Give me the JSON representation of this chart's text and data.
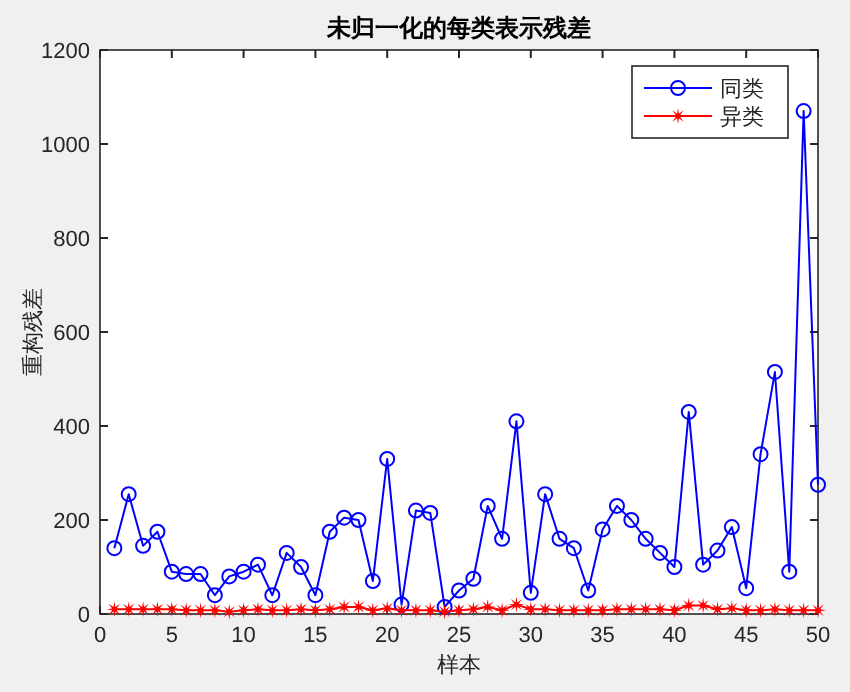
{
  "chart_data": {
    "type": "line",
    "title": "未归一化的每类表示残差",
    "xlabel": "样本",
    "ylabel": "重构残差",
    "x": [
      1,
      2,
      3,
      4,
      5,
      6,
      7,
      8,
      9,
      10,
      11,
      12,
      13,
      14,
      15,
      16,
      17,
      18,
      19,
      20,
      21,
      22,
      23,
      24,
      25,
      26,
      27,
      28,
      29,
      30,
      31,
      32,
      33,
      34,
      35,
      36,
      37,
      38,
      39,
      40,
      41,
      42,
      43,
      44,
      45,
      46,
      47,
      48,
      49,
      50
    ],
    "series": [
      {
        "name": "同类",
        "color": "#0000ff",
        "marker": "circle",
        "values": [
          140,
          255,
          145,
          175,
          90,
          85,
          85,
          40,
          80,
          90,
          105,
          40,
          130,
          100,
          40,
          175,
          205,
          200,
          70,
          330,
          20,
          220,
          215,
          15,
          50,
          75,
          230,
          160,
          410,
          45,
          255,
          160,
          140,
          50,
          180,
          230,
          200,
          160,
          130,
          100,
          430,
          105,
          135,
          185,
          55,
          340,
          515,
          90,
          1070,
          275
        ]
      },
      {
        "name": "异类",
        "color": "#ff0000",
        "marker": "star",
        "values": [
          10,
          10,
          10,
          10,
          10,
          8,
          8,
          8,
          5,
          8,
          10,
          8,
          8,
          10,
          8,
          10,
          15,
          15,
          8,
          12,
          8,
          8,
          8,
          5,
          8,
          10,
          15,
          8,
          20,
          10,
          10,
          8,
          8,
          8,
          8,
          10,
          10,
          10,
          10,
          8,
          18,
          18,
          10,
          12,
          8,
          8,
          10,
          8,
          8,
          8
        ]
      }
    ],
    "xlim": [
      0,
      50
    ],
    "ylim": [
      0,
      1200
    ],
    "xticks": [
      0,
      5,
      10,
      15,
      20,
      25,
      30,
      35,
      40,
      45,
      50
    ],
    "yticks": [
      0,
      200,
      400,
      600,
      800,
      1000,
      1200
    ],
    "legend": "top right",
    "grid": false,
    "line_style": "solid"
  }
}
